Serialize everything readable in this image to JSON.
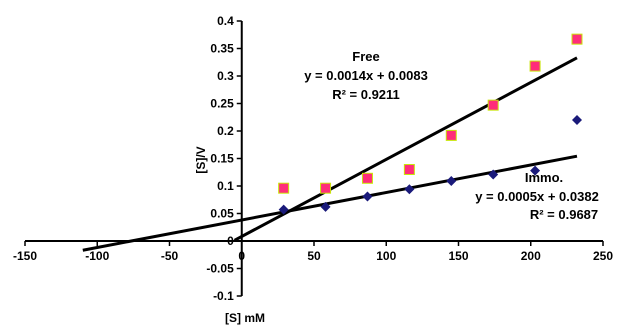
{
  "chart_data": {
    "type": "scatter",
    "xlabel": "[S] mM",
    "ylabel": "[S]/V",
    "xlim": [
      -150,
      250
    ],
    "ylim": [
      -0.1,
      0.4
    ],
    "x_ticks": [
      -150,
      -100,
      -50,
      0,
      50,
      100,
      150,
      200,
      250
    ],
    "y_ticks": [
      -0.1,
      -0.05,
      0,
      0.05,
      0.1,
      0.15,
      0.2,
      0.25,
      0.3,
      0.35,
      0.4
    ],
    "x_tick_labels": [
      "-150",
      "-100",
      "-50",
      "0",
      "50",
      "100",
      "150",
      "200",
      "250"
    ],
    "y_tick_labels": [
      "-0.1",
      "-0.05",
      "0",
      "0.05",
      "0.1",
      "0.15",
      "0.2",
      "0.25",
      "0.3",
      "0.35",
      "0.4"
    ],
    "grid": false,
    "series": [
      {
        "name": "Free",
        "marker": "square",
        "color": "#ff2d7a",
        "points": [
          {
            "x": 29,
            "y": 0.096
          },
          {
            "x": 58,
            "y": 0.096
          },
          {
            "x": 87,
            "y": 0.114
          },
          {
            "x": 116,
            "y": 0.13
          },
          {
            "x": 145,
            "y": 0.192
          },
          {
            "x": 174,
            "y": 0.247
          },
          {
            "x": 203,
            "y": 0.318
          },
          {
            "x": 232,
            "y": 0.367
          }
        ],
        "trendline": {
          "slope": 0.0014,
          "intercept": 0.0083,
          "x_range": [
            -5,
            232
          ]
        },
        "equation": "y = 0.0014x + 0.0083",
        "r_squared": "R² = 0.9211"
      },
      {
        "name": "Immo.",
        "marker": "diamond",
        "color": "#1a1a7a",
        "points": [
          {
            "x": 29,
            "y": 0.057
          },
          {
            "x": 58,
            "y": 0.062
          },
          {
            "x": 87,
            "y": 0.081
          },
          {
            "x": 116,
            "y": 0.094
          },
          {
            "x": 145,
            "y": 0.109
          },
          {
            "x": 174,
            "y": 0.121
          },
          {
            "x": 203,
            "y": 0.128
          },
          {
            "x": 232,
            "y": 0.22
          }
        ],
        "trendline": {
          "slope": 0.0005,
          "intercept": 0.0382,
          "x_range": [
            -110,
            232
          ]
        },
        "equation": "y = 0.0005x + 0.0382",
        "r_squared": "R² = 0.9687"
      }
    ]
  }
}
